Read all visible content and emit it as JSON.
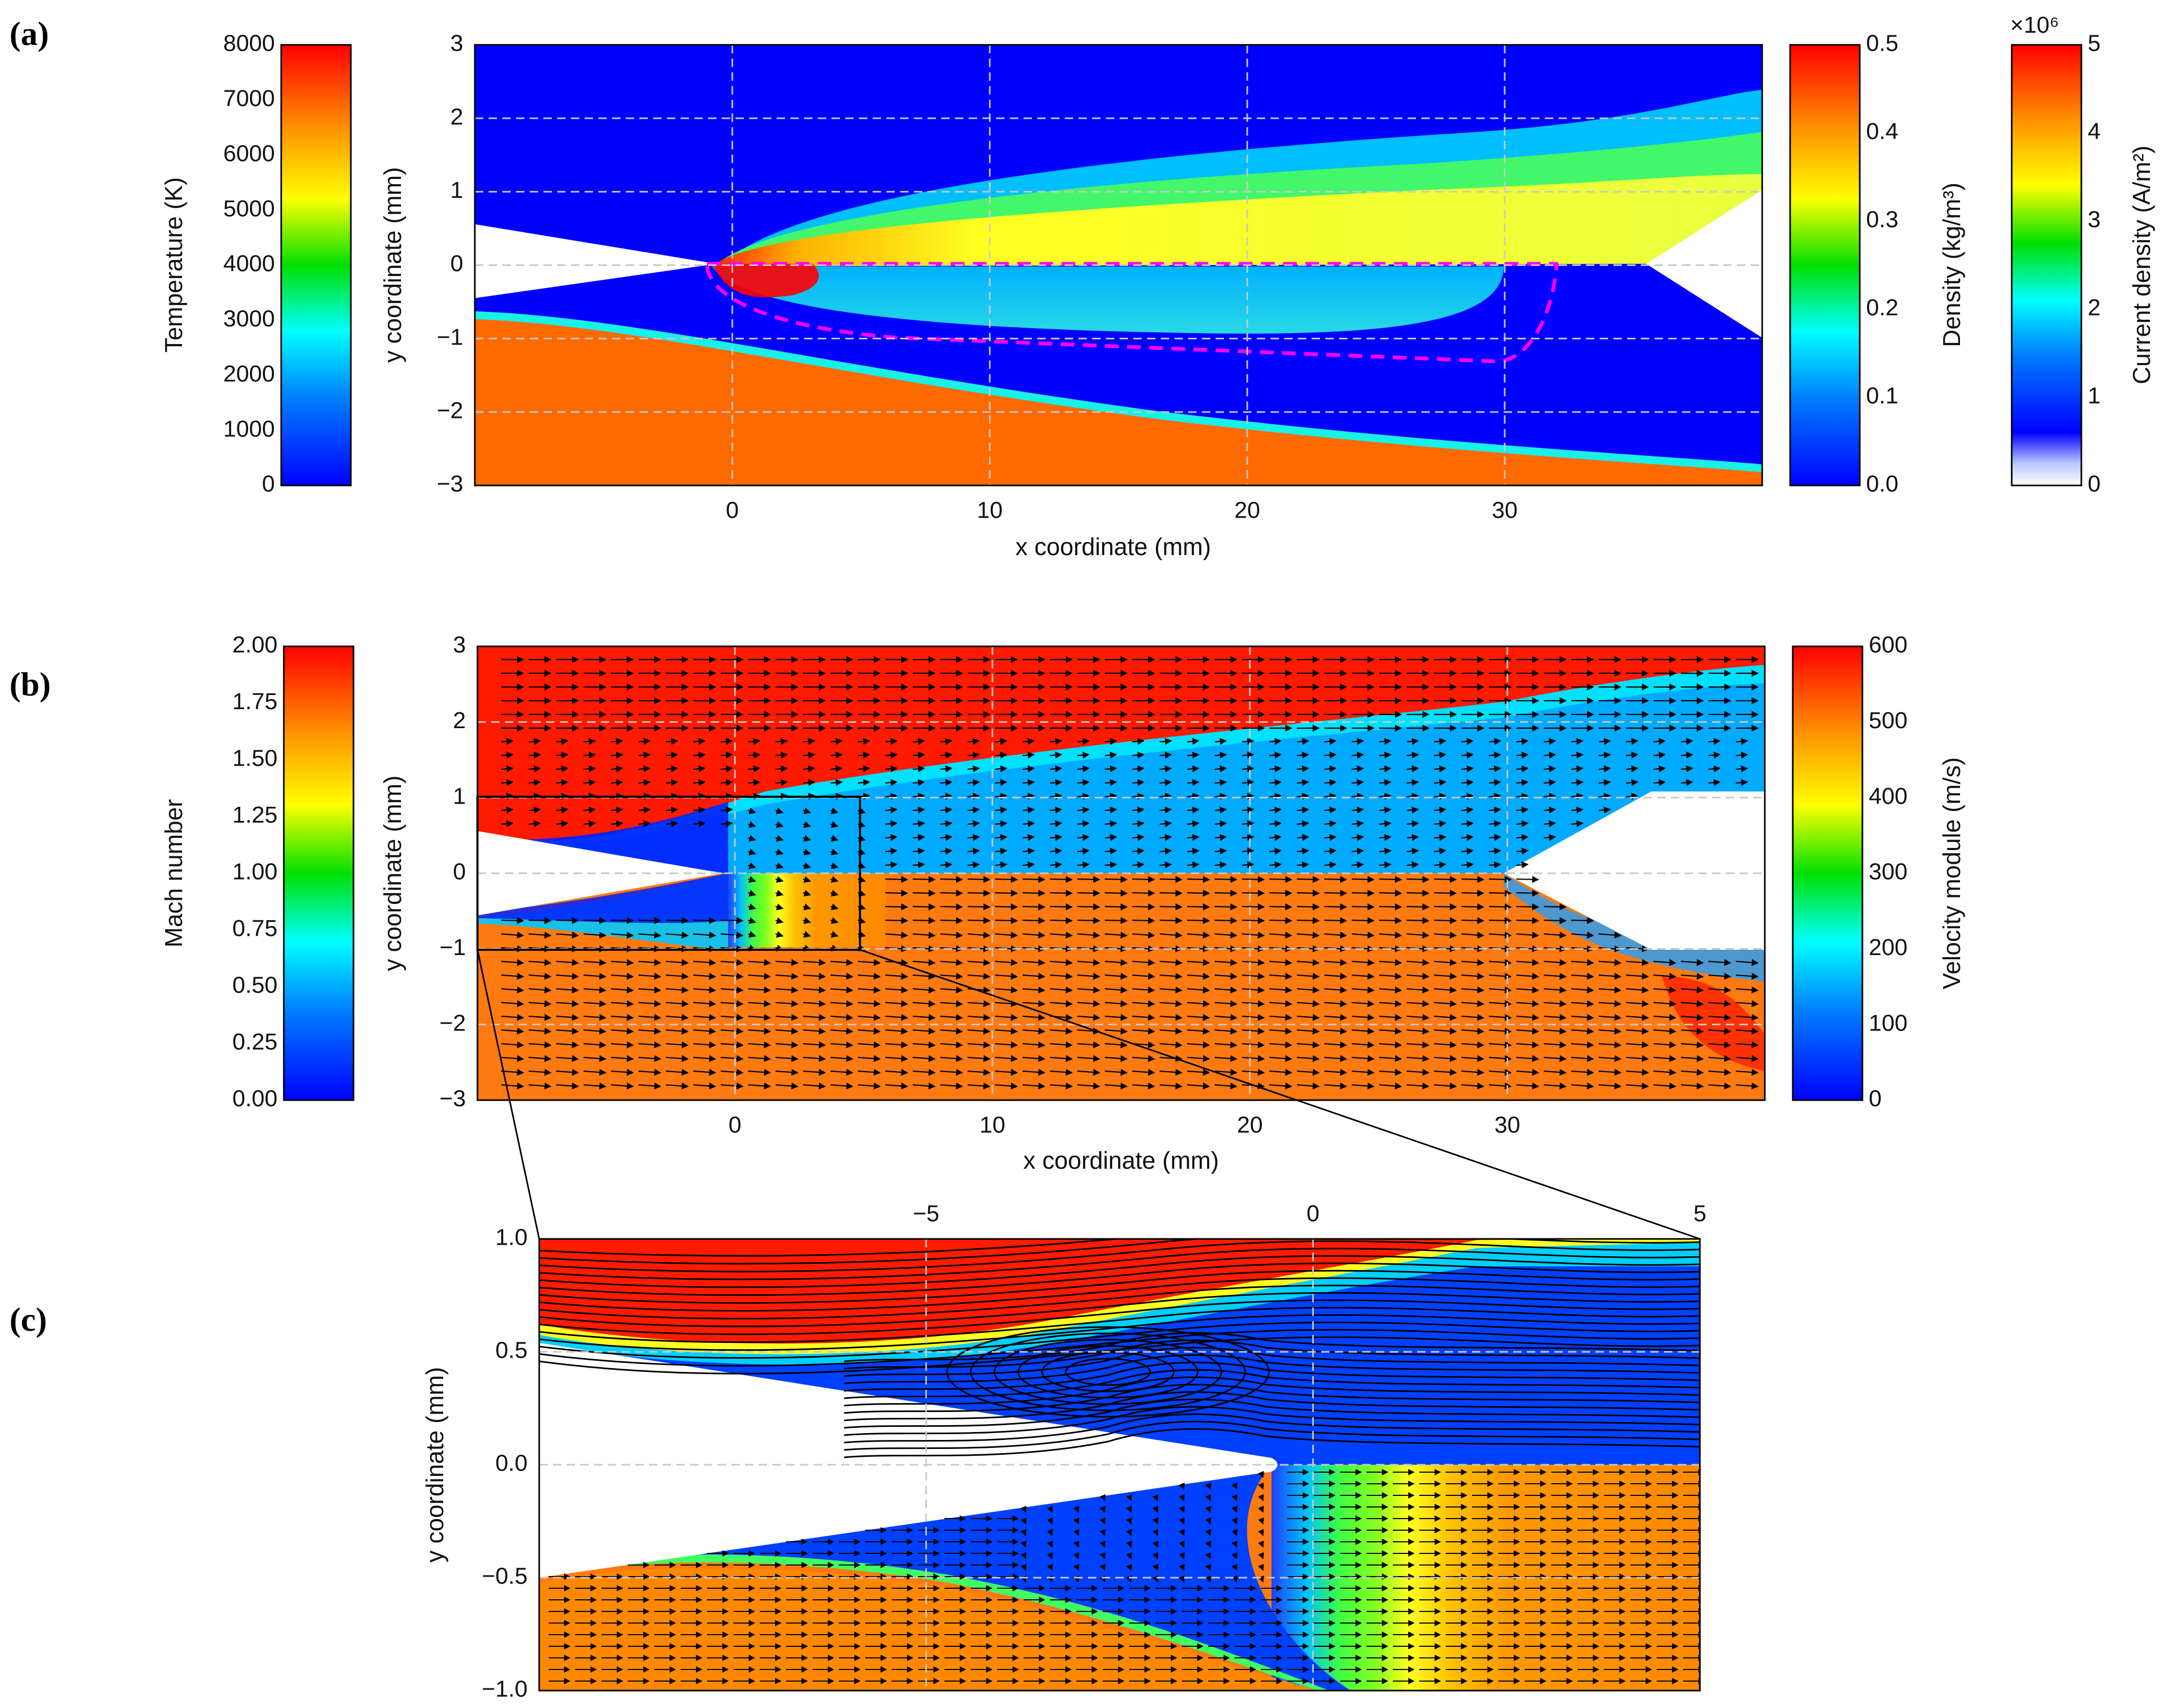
{
  "panels": {
    "a": "(a)",
    "b": "(b)",
    "c": "(c)"
  },
  "colorbars": {
    "temperature": {
      "label": "Temperature (K)",
      "ticks": [
        "8000",
        "7000",
        "6000",
        "5000",
        "4000",
        "3000",
        "2000",
        "1000",
        "0"
      ],
      "range": [
        0,
        8000
      ]
    },
    "density": {
      "label": "Density (kg/m³)",
      "ticks": [
        "0.5",
        "0.4",
        "0.3",
        "0.2",
        "0.1",
        "0.0"
      ],
      "range": [
        0,
        0.5
      ]
    },
    "current_density": {
      "label": "Current density (A/m²)",
      "multiplier": "×10⁶",
      "ticks": [
        "5",
        "4",
        "3",
        "2",
        "1",
        "0"
      ],
      "range": [
        0,
        5
      ]
    },
    "mach": {
      "label": "Mach number",
      "ticks": [
        "2.00",
        "1.75",
        "1.50",
        "1.25",
        "1.00",
        "0.75",
        "0.50",
        "0.25",
        "0.00"
      ],
      "range": [
        0,
        2
      ]
    },
    "velocity": {
      "label": "Velocity module (m/s)",
      "ticks": [
        "600",
        "500",
        "400",
        "300",
        "200",
        "100",
        "0"
      ],
      "range": [
        0,
        600
      ]
    }
  },
  "chart_data": [
    {
      "id": "a",
      "type": "heatmap",
      "title": "",
      "xlabel": "x coordinate (mm)",
      "ylabel": "y coordinate (mm)",
      "xlim": [
        -10,
        40
      ],
      "ylim": [
        -3,
        3
      ],
      "xticks": [
        "0",
        "10",
        "20",
        "30"
      ],
      "yticks": [
        "3",
        "2",
        "1",
        "0",
        "−1",
        "−2",
        "−3"
      ],
      "fields": [
        "Temperature (upper half, x<30)",
        "Density (upper right / lower half)",
        "Current density"
      ],
      "annotation": "magenta dashed outline of arc region from x≈−1 to x≈32",
      "grid": true
    },
    {
      "id": "b",
      "type": "heatmap",
      "title": "",
      "xlabel": "x coordinate (mm)",
      "ylabel": "y coordinate (mm)",
      "xlim": [
        -10,
        40
      ],
      "ylim": [
        -3,
        3
      ],
      "xticks": [
        "0",
        "10",
        "20",
        "30"
      ],
      "yticks": [
        "3",
        "2",
        "1",
        "0",
        "−1",
        "−2",
        "−3"
      ],
      "fields": [
        "Mach number (upper half)",
        "Velocity module (lower half)"
      ],
      "overlay": "velocity vector arrows",
      "grid": true
    },
    {
      "id": "c",
      "type": "heatmap",
      "title": "",
      "xlabel": "",
      "ylabel": "y coordinate (mm)",
      "xlim": [
        -10,
        5
      ],
      "ylim": [
        -1,
        1
      ],
      "xticks": [
        "−5",
        "0",
        "5"
      ],
      "yticks": [
        "1.0",
        "0.5",
        "0.0",
        "−0.5",
        "−1.0"
      ],
      "fields": [
        "Mach number with streamlines (upper half)",
        "Velocity module with vectors (lower half)"
      ],
      "note": "zoomed inset of panel (b) region x∈[−10,5], y∈[−1,1]",
      "grid": true
    }
  ]
}
